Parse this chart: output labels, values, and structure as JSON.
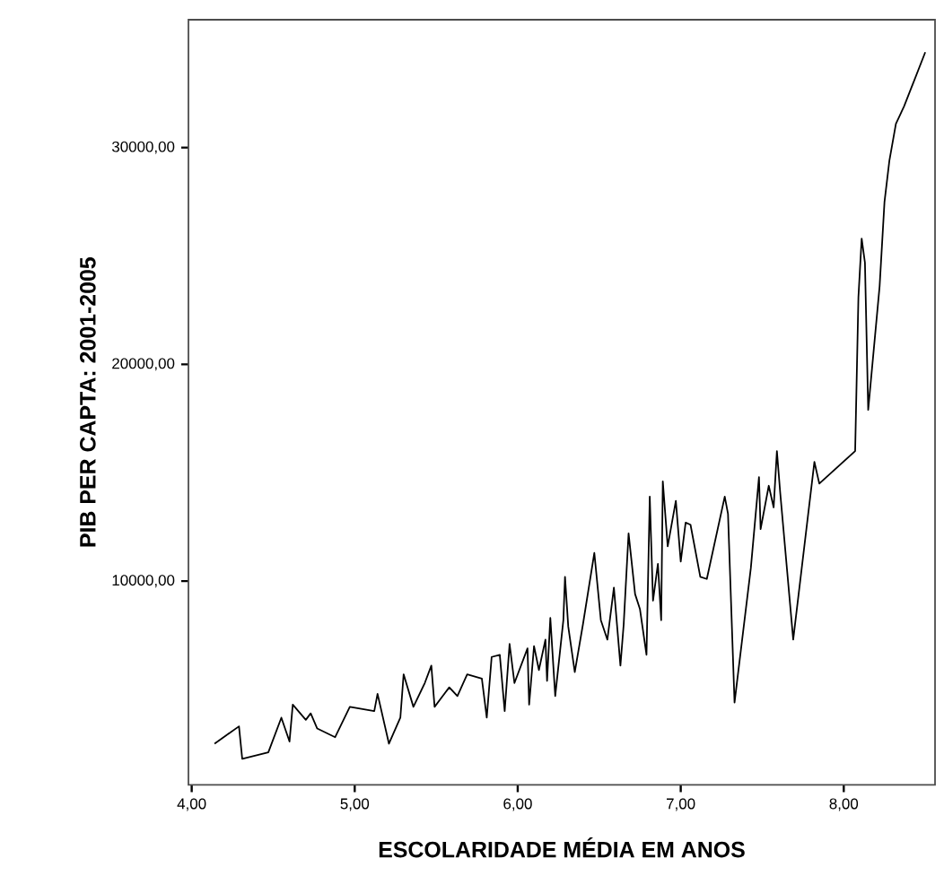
{
  "chart_data": {
    "type": "line",
    "xlabel": "ESCOLARIDADE MÉDIA EM ANOS",
    "ylabel": "PIB PER CAPTA: 2001-2005",
    "xlim": [
      3.98,
      8.56
    ],
    "ylim": [
      600,
      35900
    ],
    "xticks": [
      {
        "value": 4,
        "label": "4,00"
      },
      {
        "value": 5,
        "label": "5,00"
      },
      {
        "value": 6,
        "label": "6,00"
      },
      {
        "value": 7,
        "label": "7,00"
      },
      {
        "value": 8,
        "label": "8,00"
      }
    ],
    "yticks": [
      {
        "value": 10000,
        "label": "10000,00"
      },
      {
        "value": 20000,
        "label": "20000,00"
      },
      {
        "value": 30000,
        "label": "30000,00"
      }
    ],
    "grid": false,
    "marker": "none",
    "line_style": "solid",
    "series": [
      {
        "color": "#000000",
        "x": [
          4.14,
          4.29,
          4.31,
          4.47,
          4.55,
          4.6,
          4.62,
          4.7,
          4.73,
          4.77,
          4.88,
          4.97,
          5.12,
          5.14,
          5.21,
          5.28,
          5.3,
          5.36,
          5.43,
          5.47,
          5.49,
          5.54,
          5.58,
          5.63,
          5.69,
          5.78,
          5.81,
          5.84,
          5.89,
          5.92,
          5.95,
          5.98,
          6.06,
          6.07,
          6.1,
          6.13,
          6.17,
          6.18,
          6.2,
          6.23,
          6.28,
          6.29,
          6.31,
          6.35,
          6.4,
          6.47,
          6.51,
          6.55,
          6.59,
          6.63,
          6.65,
          6.68,
          6.72,
          6.75,
          6.79,
          6.81,
          6.83,
          6.86,
          6.88,
          6.89,
          6.92,
          6.97,
          7.0,
          7.03,
          7.06,
          7.12,
          7.16,
          7.27,
          7.29,
          7.33,
          7.43,
          7.48,
          7.49,
          7.54,
          7.57,
          7.59,
          7.61,
          7.69,
          7.82,
          7.85,
          8.07,
          8.09,
          8.11,
          8.13,
          8.15,
          8.22,
          8.25,
          8.28,
          8.32,
          8.37,
          8.5
        ],
        "values": [
          2500,
          3300,
          1800,
          2100,
          3700,
          2600,
          4300,
          3600,
          3900,
          3200,
          2800,
          4200,
          4000,
          4800,
          2500,
          3700,
          5700,
          4200,
          5300,
          6100,
          4200,
          4700,
          5100,
          4700,
          5700,
          5500,
          3700,
          6500,
          6600,
          4000,
          7100,
          5300,
          6900,
          4300,
          7000,
          5900,
          7300,
          5400,
          8300,
          4700,
          8200,
          10200,
          7900,
          5800,
          8000,
          11300,
          8200,
          7300,
          9700,
          6100,
          8000,
          12200,
          9400,
          8700,
          6600,
          13900,
          9100,
          10800,
          8200,
          14600,
          11600,
          13700,
          10900,
          12700,
          12600,
          10200,
          10100,
          13900,
          13100,
          4400,
          10600,
          14800,
          12400,
          14400,
          13400,
          16000,
          14100,
          7300,
          15500,
          14500,
          16000,
          23100,
          25800,
          24700,
          17900,
          23600,
          27500,
          29400,
          31100,
          31900,
          34400
        ]
      }
    ]
  }
}
